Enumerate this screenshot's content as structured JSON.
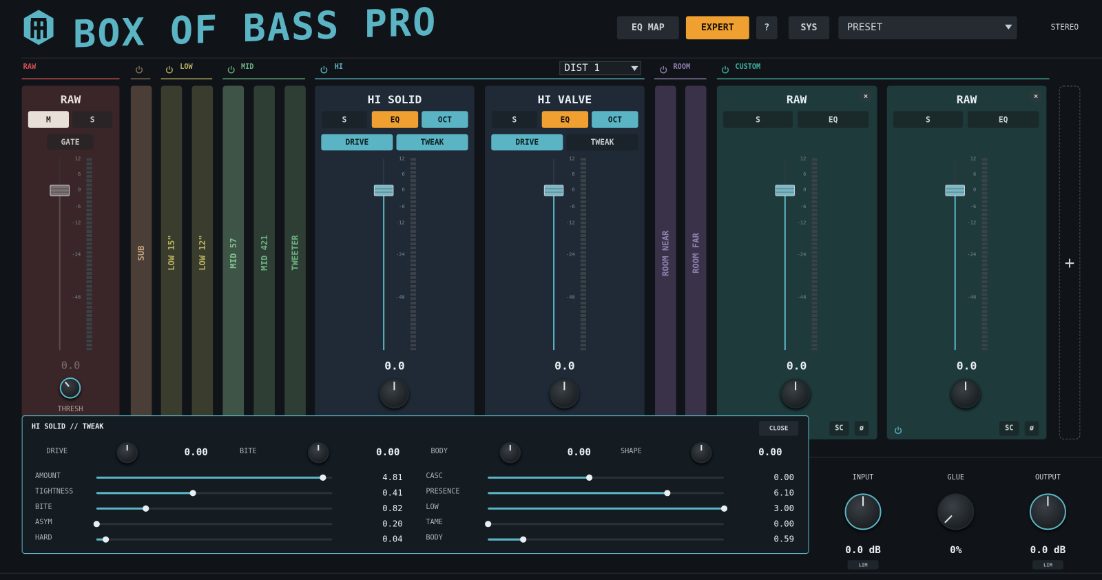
{
  "header": {
    "title": "BOX OF BASS PRO",
    "buttons": [
      "EQ MAP",
      "EXPERT",
      "?",
      "SYS"
    ],
    "preset": "PRESET",
    "mode": "STEREO"
  },
  "sections": {
    "raw": "RAW",
    "low": "LOW",
    "mid": "MID",
    "hi": "HI",
    "dist": "DIST 1",
    "room": "ROOM",
    "custom": "CUSTOM"
  },
  "fader_scale": [
    "12",
    "6",
    "0",
    "-6",
    "-12",
    "-24",
    "-48"
  ],
  "raw_channel": {
    "name": "RAW",
    "buttons": [
      "M",
      "S"
    ],
    "gate": "GATE",
    "value": "0.0",
    "knob": "THRESH"
  },
  "strips": [
    "SUB",
    "LOW 15\"",
    "LOW 12\"",
    "MID 57",
    "MID 421",
    "TWEETER"
  ],
  "room_strips": [
    "ROOM NEAR",
    "ROOM FAR"
  ],
  "amp_channels": [
    {
      "name": "HI SOLID",
      "buttons": [
        "S",
        "EQ",
        "OCT"
      ],
      "modes": [
        "DRIVE",
        "TWEAK"
      ],
      "value": "0.0"
    },
    {
      "name": "HI VALVE",
      "buttons": [
        "S",
        "EQ",
        "OCT"
      ],
      "modes": [
        "DRIVE",
        "TWEAK"
      ],
      "value": "0.0"
    }
  ],
  "custom_channels": [
    {
      "name": "RAW",
      "close": "×",
      "buttons": [
        "S",
        "EQ"
      ],
      "value": "0.0",
      "footer": [
        "SC",
        "ø"
      ]
    },
    {
      "name": "RAW",
      "close": "×",
      "buttons": [
        "S",
        "EQ"
      ],
      "value": "0.0",
      "footer": [
        "SC",
        "ø"
      ]
    }
  ],
  "add": "+",
  "tweak": {
    "title": "HI SOLID // TWEAK",
    "close": "CLOSE",
    "knobs": [
      {
        "label": "DRIVE",
        "value": "0.00"
      },
      {
        "label": "BITE",
        "value": "0.00"
      },
      {
        "label": "BODY",
        "value": "0.00"
      },
      {
        "label": "SHAPE",
        "value": "0.00"
      }
    ],
    "sliders": [
      [
        {
          "label": "AMOUNT",
          "value": "4.81",
          "level": 0.96
        },
        {
          "label": "TIGHTNESS",
          "value": "0.41",
          "level": 0.41
        },
        {
          "label": "BITE",
          "value": "0.82",
          "level": 0.21
        },
        {
          "label": "ASYM",
          "value": "0.20",
          "level": 0
        },
        {
          "label": "HARD",
          "value": "0.04",
          "level": 0.04
        }
      ],
      [
        {
          "label": "CASC",
          "value": "0.00",
          "level": 0.43
        },
        {
          "label": "PRESENCE",
          "value": "6.10",
          "level": 0.76
        },
        {
          "label": "LOW",
          "value": "3.00",
          "level": 1
        },
        {
          "label": "TAME",
          "value": "0.00",
          "level": 0
        },
        {
          "label": "BODY",
          "value": "0.59",
          "level": 0.15
        }
      ]
    ]
  },
  "output": [
    {
      "label": "INPUT",
      "value": "0.0 dB",
      "badge": "LIM"
    },
    {
      "label": "GLUE",
      "value": "0%"
    },
    {
      "label": "OUTPUT",
      "value": "0.0 dB",
      "badge": "LIM"
    }
  ]
}
